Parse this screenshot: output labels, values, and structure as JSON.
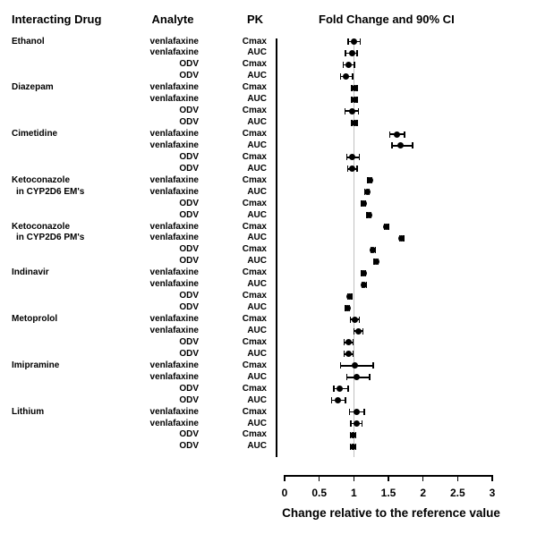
{
  "figure": {
    "header": {
      "interacting_drug": "Interacting Drug",
      "analyte": "Analyte",
      "pk": "PK",
      "fold_change": "Fold Change and 90% CI"
    }
  },
  "axis": {
    "title": "Change relative to the reference value",
    "min": 0,
    "max": 3,
    "tick_labels": [
      "0",
      "0.5",
      "1",
      "1.5",
      "2",
      "2.5",
      "3"
    ],
    "tick_values": [
      0,
      0.5,
      1,
      1.5,
      2,
      2.5,
      3
    ],
    "reference_value": 1
  },
  "colors": {
    "marker": "#000000",
    "reference_line": "#c0c0c0",
    "axis": "#000000",
    "text": "#000000"
  },
  "chart_data": {
    "type": "forest",
    "title": "Fold Change and 90% CI",
    "xlabel": "Change relative to the reference value",
    "xlim": [
      0,
      3
    ],
    "reference": 1,
    "groups": [
      {
        "drug": [
          "Ethanol"
        ],
        "rows": [
          {
            "analyte": "venlafaxine",
            "pk": "Cmax",
            "value": 1.0,
            "lo": 0.92,
            "hi": 1.09
          },
          {
            "analyte": "venlafaxine",
            "pk": "AUC",
            "value": 0.97,
            "lo": 0.88,
            "hi": 1.05
          },
          {
            "analyte": "ODV",
            "pk": "Cmax",
            "value": 0.93,
            "lo": 0.85,
            "hi": 1.01
          },
          {
            "analyte": "ODV",
            "pk": "AUC",
            "value": 0.89,
            "lo": 0.81,
            "hi": 0.98
          }
        ]
      },
      {
        "drug": [
          "Diazepam"
        ],
        "rows": [
          {
            "analyte": "venlafaxine",
            "pk": "Cmax",
            "value": 1.01,
            "lo": 0.97,
            "hi": 1.05
          },
          {
            "analyte": "venlafaxine",
            "pk": "AUC",
            "value": 1.01,
            "lo": 0.97,
            "hi": 1.05
          },
          {
            "analyte": "ODV",
            "pk": "Cmax",
            "value": 0.97,
            "lo": 0.87,
            "hi": 1.07
          },
          {
            "analyte": "ODV",
            "pk": "AUC",
            "value": 1.01,
            "lo": 0.97,
            "hi": 1.05
          }
        ]
      },
      {
        "drug": [
          "Cimetidine"
        ],
        "rows": [
          {
            "analyte": "venlafaxine",
            "pk": "Cmax",
            "value": 1.62,
            "lo": 1.52,
            "hi": 1.73
          },
          {
            "analyte": "venlafaxine",
            "pk": "AUC",
            "value": 1.68,
            "lo": 1.55,
            "hi": 1.85
          },
          {
            "analyte": "ODV",
            "pk": "Cmax",
            "value": 0.98,
            "lo": 0.9,
            "hi": 1.08
          },
          {
            "analyte": "ODV",
            "pk": "AUC",
            "value": 0.97,
            "lo": 0.91,
            "hi": 1.05
          }
        ]
      },
      {
        "drug": [
          "Ketoconazole",
          "in CYP2D6 EM's"
        ],
        "rows": [
          {
            "analyte": "venlafaxine",
            "pk": "Cmax",
            "value": 1.23,
            "lo": 1.2,
            "hi": 1.26
          },
          {
            "analyte": "venlafaxine",
            "pk": "AUC",
            "value": 1.19,
            "lo": 1.16,
            "hi": 1.22
          },
          {
            "analyte": "ODV",
            "pk": "Cmax",
            "value": 1.14,
            "lo": 1.11,
            "hi": 1.17
          },
          {
            "analyte": "ODV",
            "pk": "AUC",
            "value": 1.22,
            "lo": 1.19,
            "hi": 1.25
          }
        ]
      },
      {
        "drug": [
          "Ketoconazole",
          "in CYP2D6 PM's"
        ],
        "rows": [
          {
            "analyte": "venlafaxine",
            "pk": "Cmax",
            "value": 1.47,
            "lo": 1.44,
            "hi": 1.5
          },
          {
            "analyte": "venlafaxine",
            "pk": "AUC",
            "value": 1.69,
            "lo": 1.66,
            "hi": 1.72
          },
          {
            "analyte": "ODV",
            "pk": "Cmax",
            "value": 1.28,
            "lo": 1.25,
            "hi": 1.31
          },
          {
            "analyte": "ODV",
            "pk": "AUC",
            "value": 1.32,
            "lo": 1.29,
            "hi": 1.35
          }
        ]
      },
      {
        "drug": [
          "Indinavir"
        ],
        "rows": [
          {
            "analyte": "venlafaxine",
            "pk": "Cmax",
            "value": 1.14,
            "lo": 1.11,
            "hi": 1.17
          },
          {
            "analyte": "venlafaxine",
            "pk": "AUC",
            "value": 1.15,
            "lo": 1.12,
            "hi": 1.18
          },
          {
            "analyte": "ODV",
            "pk": "Cmax",
            "value": 0.94,
            "lo": 0.91,
            "hi": 0.97
          },
          {
            "analyte": "ODV",
            "pk": "AUC",
            "value": 0.91,
            "lo": 0.88,
            "hi": 0.94
          }
        ]
      },
      {
        "drug": [
          "Metoprolol"
        ],
        "rows": [
          {
            "analyte": "venlafaxine",
            "pk": "Cmax",
            "value": 1.01,
            "lo": 0.95,
            "hi": 1.08
          },
          {
            "analyte": "venlafaxine",
            "pk": "AUC",
            "value": 1.07,
            "lo": 1.0,
            "hi": 1.13
          },
          {
            "analyte": "ODV",
            "pk": "Cmax",
            "value": 0.92,
            "lo": 0.86,
            "hi": 0.99
          },
          {
            "analyte": "ODV",
            "pk": "AUC",
            "value": 0.92,
            "lo": 0.86,
            "hi": 0.99
          }
        ]
      },
      {
        "drug": [
          "Imipramine"
        ],
        "rows": [
          {
            "analyte": "venlafaxine",
            "pk": "Cmax",
            "value": 1.02,
            "lo": 0.81,
            "hi": 1.28
          },
          {
            "analyte": "venlafaxine",
            "pk": "AUC",
            "value": 1.04,
            "lo": 0.9,
            "hi": 1.23
          },
          {
            "analyte": "ODV",
            "pk": "Cmax",
            "value": 0.8,
            "lo": 0.71,
            "hi": 0.92
          },
          {
            "analyte": "ODV",
            "pk": "AUC",
            "value": 0.77,
            "lo": 0.68,
            "hi": 0.88
          }
        ]
      },
      {
        "drug": [
          "Lithium"
        ],
        "rows": [
          {
            "analyte": "venlafaxine",
            "pk": "Cmax",
            "value": 1.04,
            "lo": 0.94,
            "hi": 1.15
          },
          {
            "analyte": "venlafaxine",
            "pk": "AUC",
            "value": 1.04,
            "lo": 0.96,
            "hi": 1.12
          },
          {
            "analyte": "ODV",
            "pk": "Cmax",
            "value": 0.99,
            "lo": 0.95,
            "hi": 1.03
          },
          {
            "analyte": "ODV",
            "pk": "AUC",
            "value": 0.99,
            "lo": 0.95,
            "hi": 1.03
          }
        ]
      }
    ]
  }
}
